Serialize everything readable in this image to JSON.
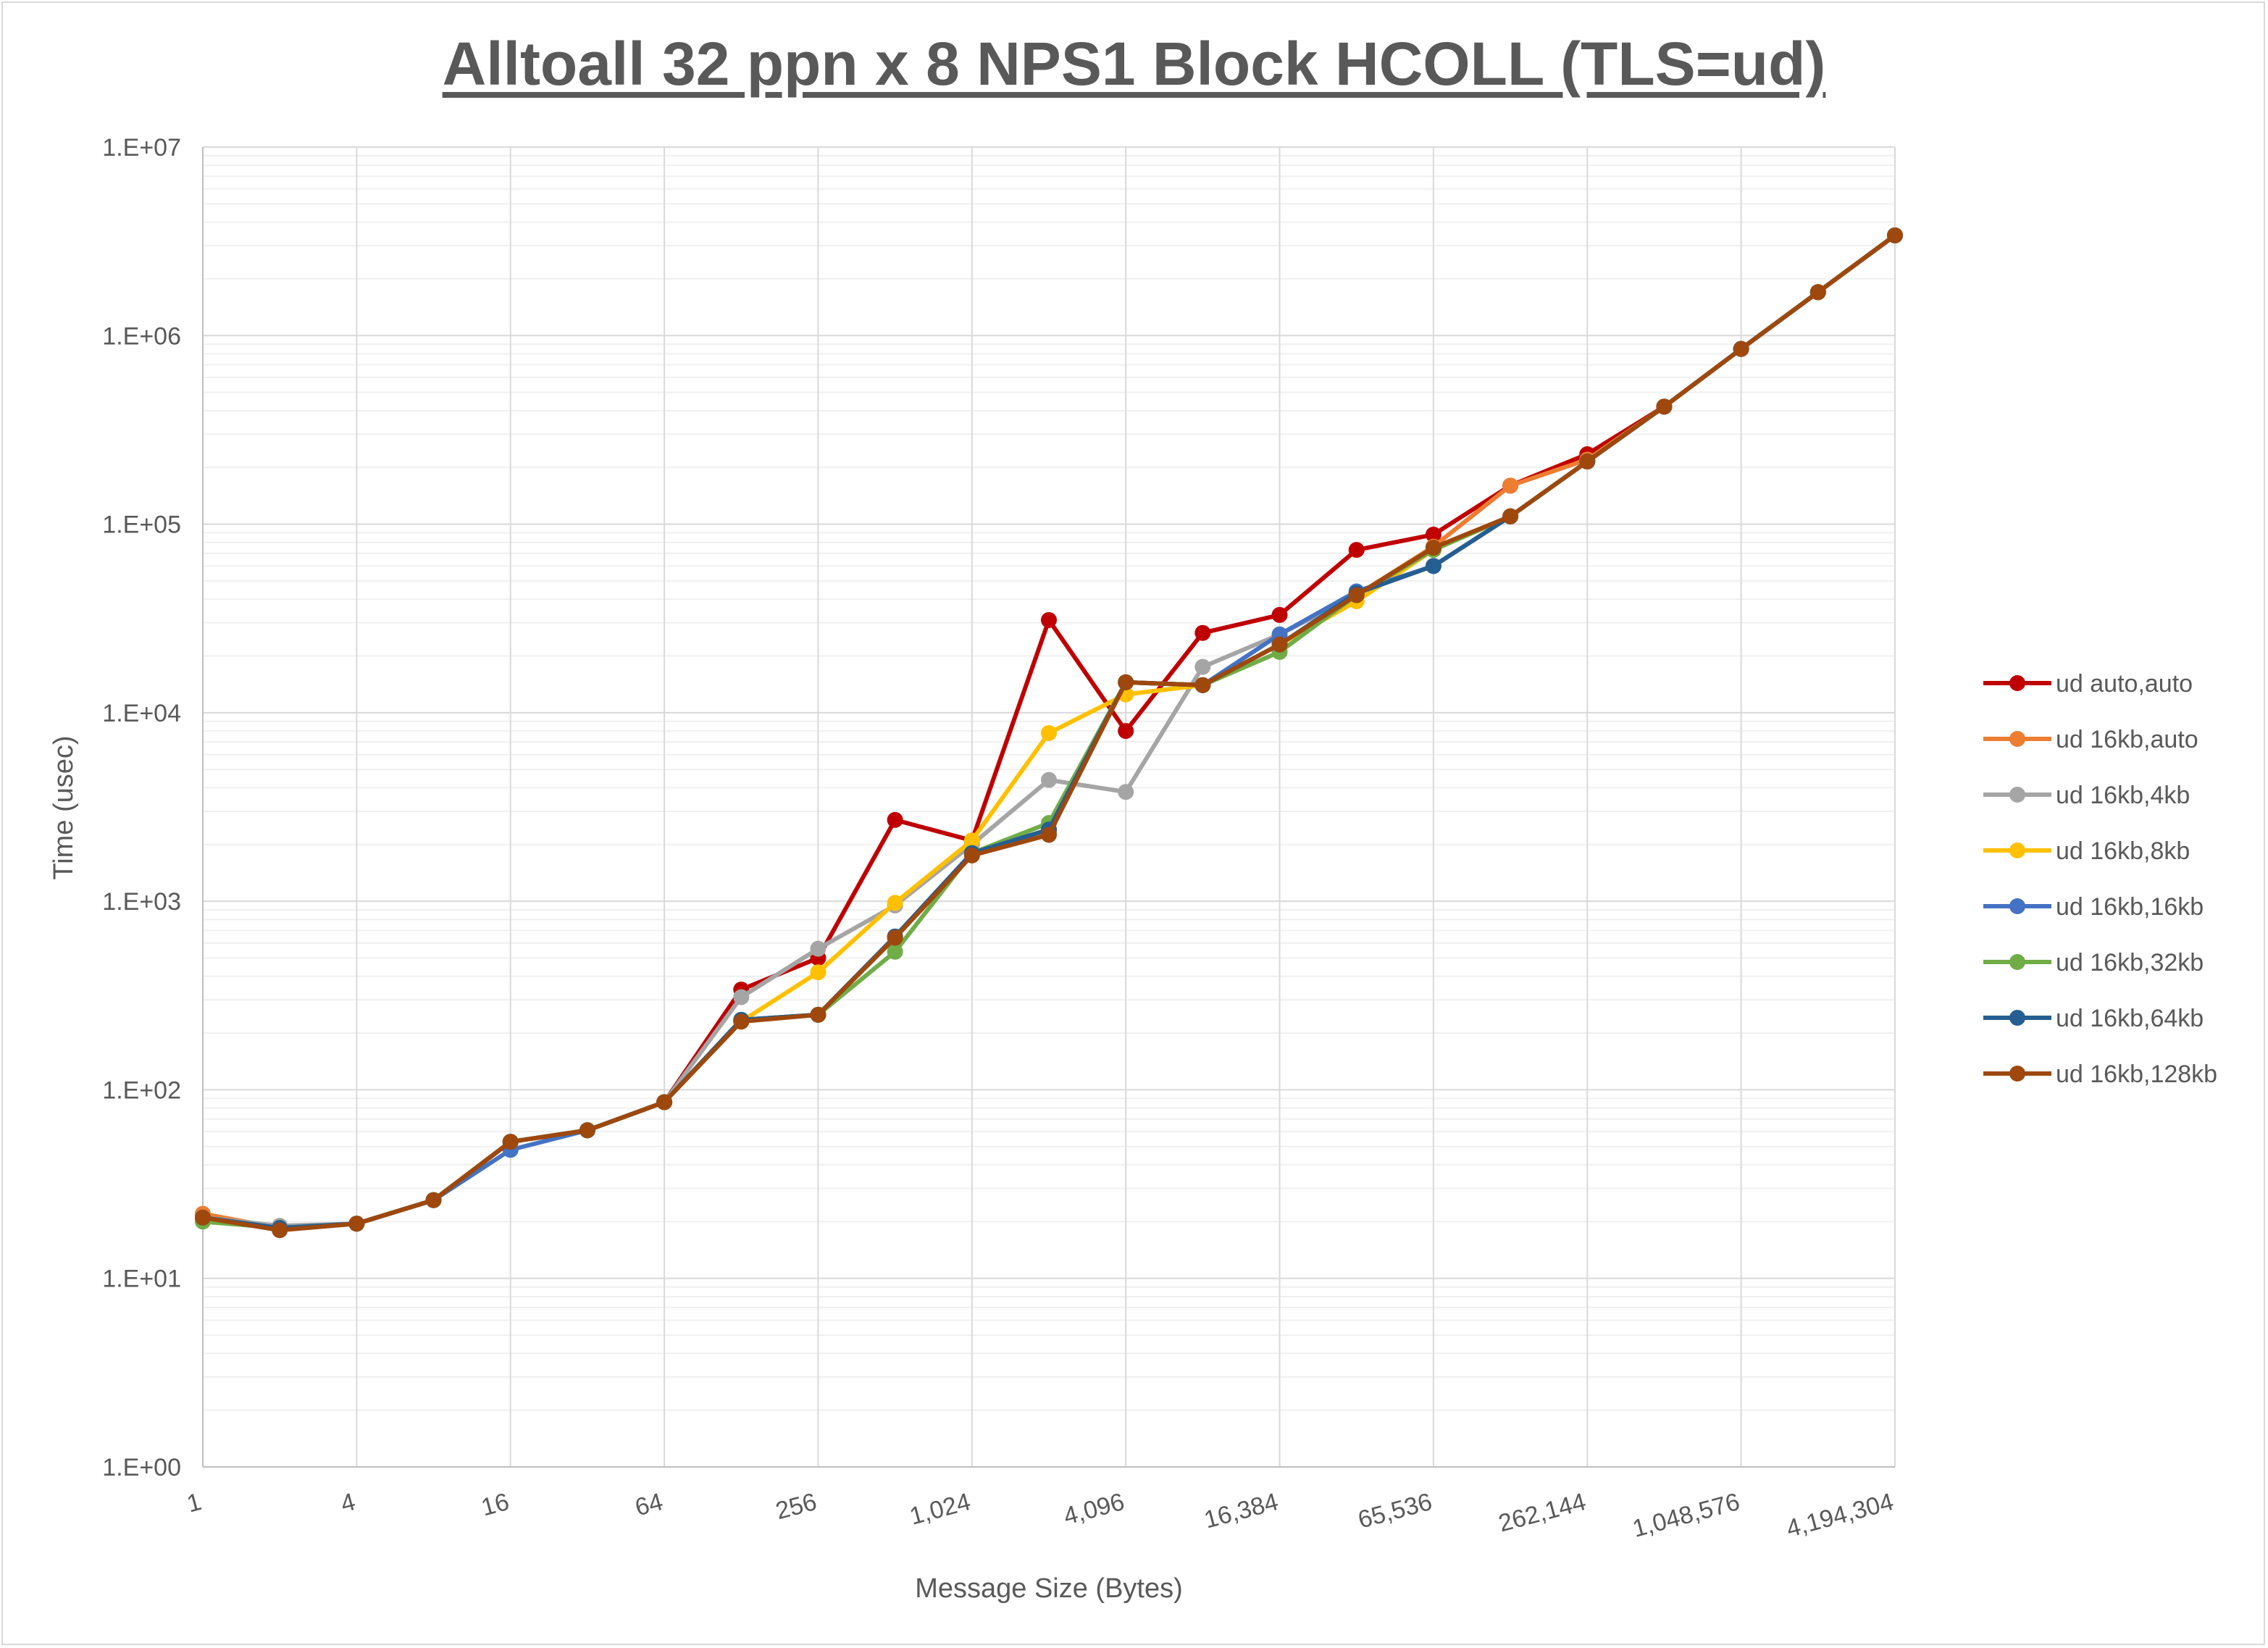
{
  "chart_data": {
    "type": "line",
    "title": "Alltoall 32 ppn x 8 NPS1 Block HCOLL (TLS=ud)",
    "xlabel": "Message Size (Bytes)",
    "ylabel": "Time (usec)",
    "x_scale": "log2",
    "y_scale": "log10",
    "xlim": [
      1,
      4194304
    ],
    "ylim": [
      1,
      10000000
    ],
    "grid": true,
    "legend_position": "right",
    "x": [
      1,
      2,
      4,
      8,
      16,
      32,
      64,
      128,
      256,
      512,
      1024,
      2048,
      4096,
      8192,
      16384,
      32768,
      65536,
      131072,
      262144,
      524288,
      1048576,
      2097152,
      4194304
    ],
    "x_tick_labels": [
      "1",
      "4",
      "16",
      "64",
      "256",
      "1,024",
      "4,096",
      "16,384",
      "65,536",
      "262,144",
      "1,048,576",
      "4,194,304"
    ],
    "x_tick_values": [
      1,
      4,
      16,
      64,
      256,
      1024,
      4096,
      16384,
      65536,
      262144,
      1048576,
      4194304
    ],
    "y_tick_labels": [
      "1.E+00",
      "1.E+01",
      "1.E+02",
      "1.E+03",
      "1.E+04",
      "1.E+05",
      "1.E+06",
      "1.E+07"
    ],
    "y_tick_values": [
      1,
      10,
      100,
      1000,
      10000,
      100000,
      1000000,
      10000000
    ],
    "series": [
      {
        "name": "ud auto,auto",
        "color": "#C00000",
        "values": [
          21,
          18.5,
          19.5,
          26,
          53,
          61,
          86,
          340,
          500,
          2700,
          2100,
          31000,
          8000,
          26500,
          33000,
          73000,
          88000,
          160000,
          235000,
          420000,
          850000,
          1700000,
          3400000
        ]
      },
      {
        "name": "ud 16kb,auto",
        "color": "#ED7D31",
        "values": [
          22,
          18.5,
          19.5,
          26,
          53,
          61,
          86,
          235,
          250,
          640,
          1800,
          2300,
          14500,
          14000,
          23000,
          42000,
          76000,
          160000,
          220000,
          420000,
          850000,
          1700000,
          3400000
        ]
      },
      {
        "name": "ud 16kb,4kb",
        "color": "#A5A5A5",
        "values": [
          21,
          19,
          19.5,
          26,
          53,
          61,
          86,
          310,
          560,
          950,
          2000,
          4400,
          3800,
          17500,
          26000,
          42000,
          73000,
          110000,
          215000,
          420000,
          850000,
          1700000,
          3400000
        ]
      },
      {
        "name": "ud 16kb,8kb",
        "color": "#FFC000",
        "values": [
          21,
          18.5,
          19.5,
          26,
          53,
          61,
          86,
          230,
          420,
          980,
          2100,
          7800,
          12500,
          14000,
          23000,
          39000,
          73000,
          110000,
          215000,
          420000,
          850000,
          1700000,
          3400000
        ]
      },
      {
        "name": "ud 16kb,16kb",
        "color": "#4472C4",
        "values": [
          21,
          18.5,
          19.5,
          26,
          48,
          61,
          86,
          235,
          250,
          650,
          1800,
          2400,
          14500,
          14000,
          26000,
          44000,
          60000,
          110000,
          215000,
          420000,
          850000,
          1700000,
          3400000
        ]
      },
      {
        "name": "ud 16kb,32kb",
        "color": "#70AD47",
        "values": [
          20,
          18.5,
          19.5,
          26,
          53,
          61,
          86,
          235,
          250,
          540,
          1800,
          2600,
          14500,
          14000,
          21000,
          42000,
          73000,
          110000,
          215000,
          420000,
          850000,
          1700000,
          3400000
        ]
      },
      {
        "name": "ud 16kb,64kb",
        "color": "#255E91",
        "values": [
          21,
          18.5,
          19.5,
          26,
          53,
          61,
          86,
          235,
          250,
          650,
          1800,
          2400,
          14500,
          14000,
          23000,
          43000,
          60000,
          110000,
          215000,
          420000,
          850000,
          1700000,
          3400000
        ]
      },
      {
        "name": "ud 16kb,128kb",
        "color": "#9E480E",
        "values": [
          21,
          18,
          19.5,
          26,
          53,
          61,
          86,
          230,
          250,
          640,
          1750,
          2250,
          14500,
          14000,
          23000,
          42000,
          75000,
          110000,
          215000,
          420000,
          850000,
          1700000,
          3400000
        ]
      }
    ]
  }
}
